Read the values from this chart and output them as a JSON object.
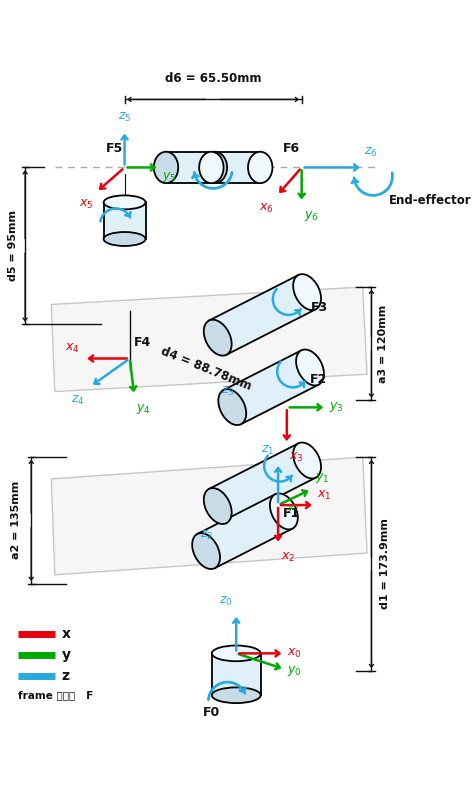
{
  "bg_color": "#ffffff",
  "red": "#e8000d",
  "green": "#00aa00",
  "blue": "#29aadf",
  "dark": "#111111",
  "gray": "#888888",
  "dimensions": {
    "d6": "d6 = 65.50mm",
    "d5": "d5 = 95mm",
    "d4": "d4 = 88.78mm",
    "a3": "a3 = 120mm",
    "a2": "a2 = 135mm",
    "d1": "d1 = 173.9mm"
  }
}
